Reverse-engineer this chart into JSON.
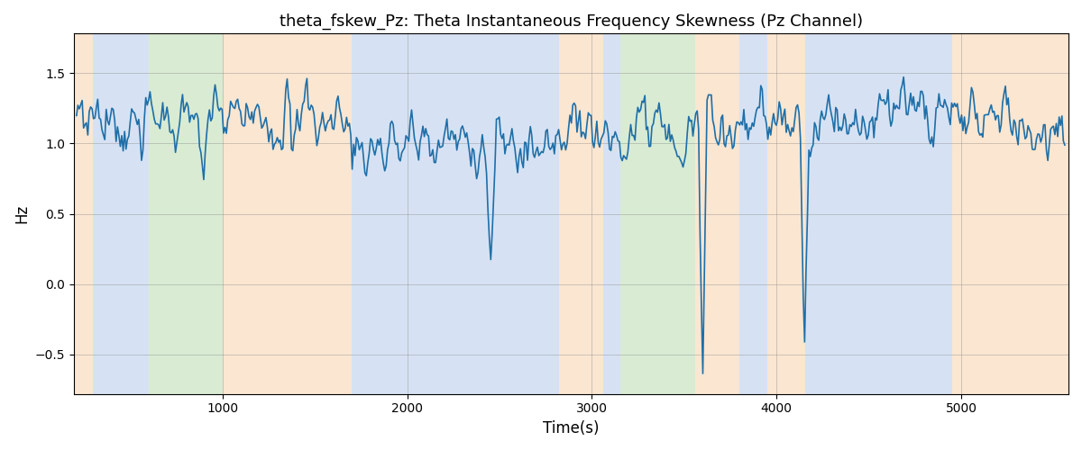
{
  "title": "theta_fskew_Pz: Theta Instantaneous Frequency Skewness (Pz Channel)",
  "xlabel": "Time(s)",
  "ylabel": "Hz",
  "xlim": [
    195,
    5580
  ],
  "ylim": [
    -0.78,
    1.78
  ],
  "yticks": [
    -0.5,
    0.0,
    0.5,
    1.0,
    1.5
  ],
  "xticks": [
    1000,
    2000,
    3000,
    4000,
    5000
  ],
  "line_color": "#1f6fa8",
  "line_width": 1.2,
  "bg_regions": [
    {
      "xmin": 195,
      "xmax": 300,
      "color": "#f5c89a",
      "alpha": 0.45
    },
    {
      "xmin": 300,
      "xmax": 600,
      "color": "#aec6e8",
      "alpha": 0.5
    },
    {
      "xmin": 600,
      "xmax": 1000,
      "color": "#b5d9a8",
      "alpha": 0.5
    },
    {
      "xmin": 1000,
      "xmax": 1700,
      "color": "#f5c89a",
      "alpha": 0.45
    },
    {
      "xmin": 1700,
      "xmax": 2820,
      "color": "#aec6e8",
      "alpha": 0.5
    },
    {
      "xmin": 2820,
      "xmax": 3060,
      "color": "#f5c89a",
      "alpha": 0.45
    },
    {
      "xmin": 3060,
      "xmax": 3155,
      "color": "#aec6e8",
      "alpha": 0.5
    },
    {
      "xmin": 3155,
      "xmax": 3560,
      "color": "#b5d9a8",
      "alpha": 0.5
    },
    {
      "xmin": 3560,
      "xmax": 3800,
      "color": "#f5c89a",
      "alpha": 0.45
    },
    {
      "xmin": 3800,
      "xmax": 3950,
      "color": "#aec6e8",
      "alpha": 0.5
    },
    {
      "xmin": 3950,
      "xmax": 4155,
      "color": "#f5c89a",
      "alpha": 0.45
    },
    {
      "xmin": 4155,
      "xmax": 4950,
      "color": "#aec6e8",
      "alpha": 0.5
    },
    {
      "xmin": 4950,
      "xmax": 5580,
      "color": "#f5c89a",
      "alpha": 0.45
    }
  ],
  "seed": 7,
  "n_points": 700,
  "t_start": 210,
  "t_end": 5560
}
